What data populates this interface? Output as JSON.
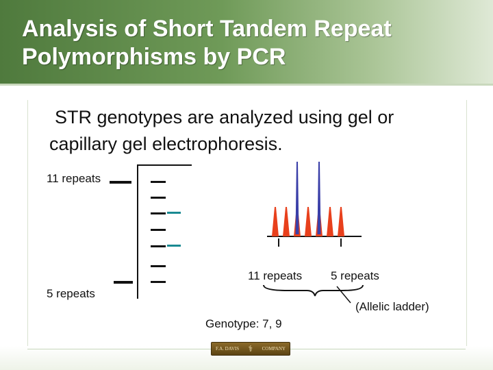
{
  "slide": {
    "title": "Analysis of Short Tandem Repeat Polymorphisms by PCR",
    "body_line1": "STR genotypes are analyzed using gel or",
    "body_line2": "capillary gel electrophoresis."
  },
  "gel": {
    "label_top": "11 repeats",
    "label_bottom": "5 repeats"
  },
  "capillary": {
    "label_11": "11 repeats",
    "label_5": "5 repeats",
    "ladder_label": "(Allelic ladder)",
    "genotype": "Genotype: 7, 9",
    "ladder_peak_color": "#e8401c",
    "sample_peak_color": "#3a3fa8"
  },
  "footer": {
    "logo_left": "F.A. DAVIS",
    "logo_right": "COMPANY",
    "logo_mark": "caduceus-icon"
  },
  "colors": {
    "header_green": "#4f7a3d",
    "teal_band": "#1a8a92"
  }
}
